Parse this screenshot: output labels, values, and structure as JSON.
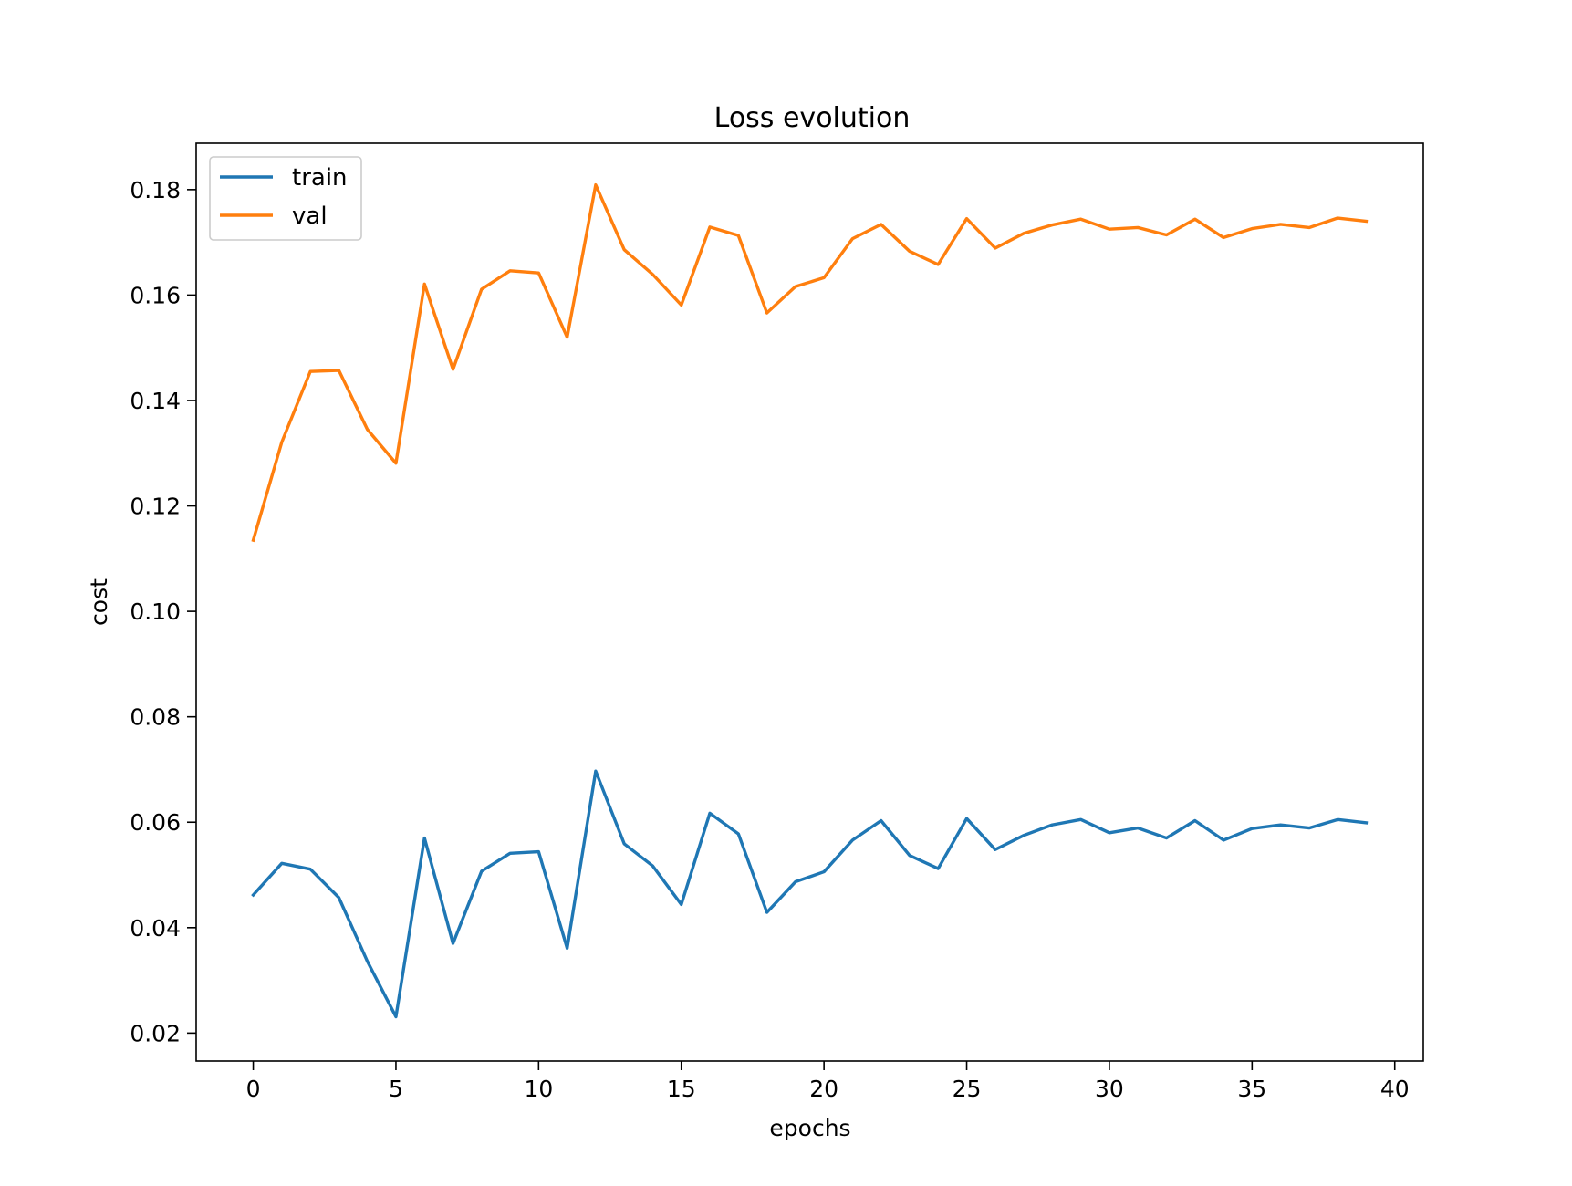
{
  "chart_data": {
    "type": "line",
    "title": "Loss evolution",
    "xlabel": "epochs",
    "ylabel": "cost",
    "xlim": [
      -2,
      41
    ],
    "ylim": [
      0.0147,
      0.1888
    ],
    "xticks": [
      0,
      5,
      10,
      15,
      20,
      25,
      30,
      35,
      40
    ],
    "yticks": [
      0.02,
      0.04,
      0.06,
      0.08,
      0.1,
      0.12,
      0.14,
      0.16,
      0.18
    ],
    "ytick_labels": [
      "0.02",
      "0.04",
      "0.06",
      "0.08",
      "0.10",
      "0.12",
      "0.14",
      "0.16",
      "0.18"
    ],
    "grid": false,
    "legend_position": "upper-left",
    "x": [
      0,
      1,
      2,
      3,
      4,
      5,
      6,
      7,
      8,
      9,
      10,
      11,
      12,
      13,
      14,
      15,
      16,
      17,
      18,
      19,
      20,
      21,
      22,
      23,
      24,
      25,
      26,
      27,
      28,
      29,
      30,
      31,
      32,
      33,
      34,
      35,
      36,
      37,
      38,
      39
    ],
    "series": [
      {
        "name": "train",
        "color": "#1f77b4",
        "values": [
          0.0462,
          0.0522,
          0.0511,
          0.0457,
          0.0336,
          0.0231,
          0.057,
          0.037,
          0.0507,
          0.0541,
          0.0544,
          0.0361,
          0.0697,
          0.0559,
          0.0517,
          0.0444,
          0.0617,
          0.0578,
          0.0429,
          0.0487,
          0.0506,
          0.0566,
          0.0603,
          0.0537,
          0.0512,
          0.0607,
          0.0548,
          0.0575,
          0.0595,
          0.0605,
          0.058,
          0.0589,
          0.057,
          0.0603,
          0.0566,
          0.0588,
          0.0595,
          0.0589,
          0.0605,
          0.0599
        ]
      },
      {
        "name": "val",
        "color": "#ff7f0e",
        "values": [
          0.1135,
          0.1321,
          0.1455,
          0.1457,
          0.1345,
          0.1281,
          0.1621,
          0.1459,
          0.1611,
          0.1646,
          0.1642,
          0.152,
          0.1809,
          0.1686,
          0.1639,
          0.1581,
          0.1729,
          0.1713,
          0.1566,
          0.1616,
          0.1633,
          0.1707,
          0.1734,
          0.1683,
          0.1658,
          0.1745,
          0.1689,
          0.1717,
          0.1733,
          0.1744,
          0.1725,
          0.1728,
          0.1714,
          0.1744,
          0.1709,
          0.1726,
          0.1734,
          0.1728,
          0.1746,
          0.174
        ]
      }
    ]
  }
}
